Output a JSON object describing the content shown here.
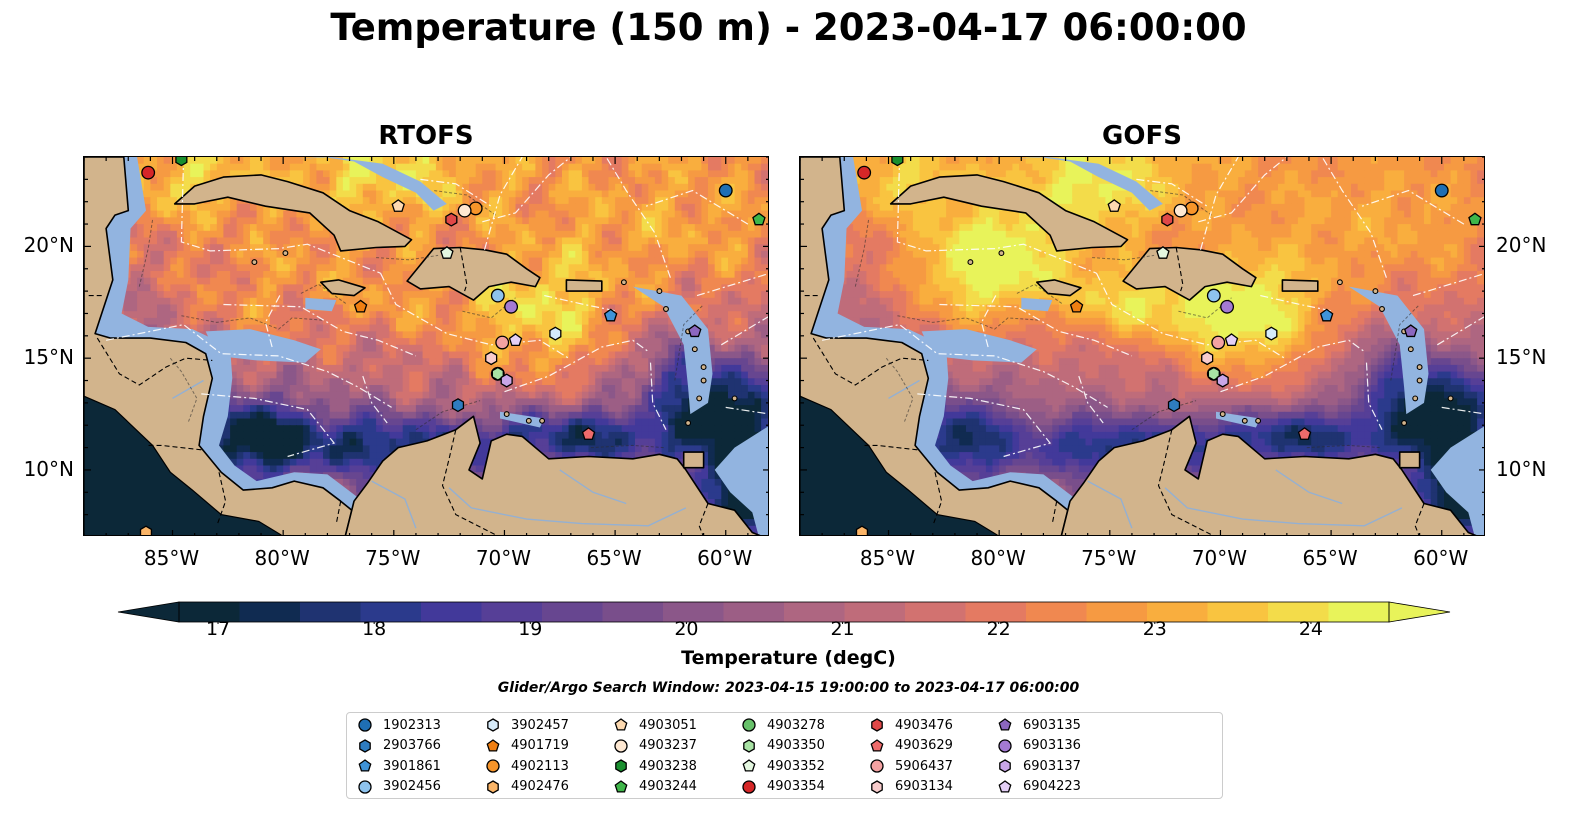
{
  "title": "Temperature (150 m) - 2023-04-17 06:00:00",
  "panels": [
    {
      "id": "rtofs",
      "title": "RTOFS",
      "variant": 0
    },
    {
      "id": "gofs",
      "title": "GOFS",
      "variant": 1
    }
  ],
  "map": {
    "lon_range": [
      -89,
      -58
    ],
    "lat_range": [
      7,
      24
    ],
    "lon_ticks": [
      {
        "value": -85,
        "label": "85°W"
      },
      {
        "value": -80,
        "label": "80°W"
      },
      {
        "value": -75,
        "label": "75°W"
      },
      {
        "value": -70,
        "label": "70°W"
      },
      {
        "value": -65,
        "label": "65°W"
      },
      {
        "value": -60,
        "label": "60°W"
      }
    ],
    "lat_ticks": [
      {
        "value": 20,
        "label": "20°N"
      },
      {
        "value": 15,
        "label": "15°N"
      },
      {
        "value": 10,
        "label": "10°N"
      }
    ],
    "colors": {
      "land": "#d2b48c",
      "shelf": "#92b4e0",
      "deep": "#0c2838"
    }
  },
  "colorbar": {
    "label": "Temperature (degC)",
    "min": 16.75,
    "max": 24.5,
    "step": 0.5,
    "ticks": [
      {
        "value": 17,
        "label": "17"
      },
      {
        "value": 18,
        "label": "18"
      },
      {
        "value": 19,
        "label": "19"
      },
      {
        "value": 20,
        "label": "20"
      },
      {
        "value": 21,
        "label": "21"
      },
      {
        "value": 22,
        "label": "22"
      },
      {
        "value": 23,
        "label": "23"
      },
      {
        "value": 24,
        "label": "24"
      }
    ],
    "colors": [
      "#0c2838",
      "#102b51",
      "#1f3371",
      "#2b3a8c",
      "#42399a",
      "#563f97",
      "#674690",
      "#794e8b",
      "#8b5789",
      "#9c5e85",
      "#ae6681",
      "#bf6c7a",
      "#d27270",
      "#e47a62",
      "#f08850",
      "#f69a42",
      "#f9ae3e",
      "#f9c440",
      "#f3dc4a",
      "#e8f35a"
    ]
  },
  "search_window": "Glider/Argo Search Window: 2023-04-15 19:00:00 to 2023-04-17 06:00:00",
  "floats": [
    {
      "id": "1902313",
      "color": "#1f6fb4",
      "marker": "circle",
      "lon": -60.0,
      "lat": 22.5
    },
    {
      "id": "2903766",
      "color": "#2e7cc0",
      "marker": "hexagon",
      "lon": -72.1,
      "lat": 12.9
    },
    {
      "id": "3901861",
      "color": "#3f93d8",
      "marker": "pentagon",
      "lon": -65.2,
      "lat": 16.9
    },
    {
      "id": "3902456",
      "color": "#8ec3ee",
      "marker": "circle",
      "lon": -70.3,
      "lat": 17.8
    },
    {
      "id": "3902457",
      "color": "#d6ebfa",
      "marker": "hexagon",
      "lon": -67.7,
      "lat": 16.1
    },
    {
      "id": "4901719",
      "color": "#f07f12",
      "marker": "pentagon",
      "lon": -76.5,
      "lat": 17.3
    },
    {
      "id": "4902113",
      "color": "#f7952a",
      "marker": "circle",
      "lon": -71.3,
      "lat": 21.7
    },
    {
      "id": "4902476",
      "color": "#fbb568",
      "marker": "hexagon",
      "lon": -86.2,
      "lat": 7.2
    },
    {
      "id": "4903051",
      "color": "#fdd9b0",
      "marker": "pentagon",
      "lon": -74.8,
      "lat": 21.8
    },
    {
      "id": "4903237",
      "color": "#fee8d2",
      "marker": "circle",
      "lon": -71.8,
      "lat": 21.6
    },
    {
      "id": "4903238",
      "color": "#1a8f2f",
      "marker": "hexagon",
      "lon": -84.6,
      "lat": 23.9
    },
    {
      "id": "4903244",
      "color": "#3fb64a",
      "marker": "pentagon",
      "lon": -58.5,
      "lat": 21.2
    },
    {
      "id": "4903278",
      "color": "#67c16a",
      "marker": "circle",
      "lon": -70.3,
      "lat": 14.3
    },
    {
      "id": "4903350",
      "color": "#a8e2a4",
      "marker": "hexagon",
      "lon": -70.3,
      "lat": 14.3
    },
    {
      "id": "4903352",
      "color": "#e4f7e0",
      "marker": "pentagon",
      "lon": -72.6,
      "lat": 19.7
    },
    {
      "id": "4903354",
      "color": "#d62728",
      "marker": "circle",
      "lon": -86.1,
      "lat": 23.3
    },
    {
      "id": "4903476",
      "color": "#e04848",
      "marker": "hexagon",
      "lon": -72.4,
      "lat": 21.2
    },
    {
      "id": "4903629",
      "color": "#ee6b6b",
      "marker": "pentagon",
      "lon": -66.2,
      "lat": 11.6
    },
    {
      "id": "5906437",
      "color": "#f4a2a2",
      "marker": "circle",
      "lon": -70.1,
      "lat": 15.7
    },
    {
      "id": "6903134",
      "color": "#f8cccc",
      "marker": "hexagon",
      "lon": -70.6,
      "lat": 15.0
    },
    {
      "id": "6903135",
      "color": "#8c67bf",
      "marker": "pentagon",
      "lon": -61.4,
      "lat": 16.2
    },
    {
      "id": "6903136",
      "color": "#a47ad3",
      "marker": "circle",
      "lon": -69.7,
      "lat": 17.3
    },
    {
      "id": "6903137",
      "color": "#c9a6e8",
      "marker": "hexagon",
      "lon": -69.9,
      "lat": 14.0
    },
    {
      "id": "6904223",
      "color": "#e4cff6",
      "marker": "pentagon",
      "lon": -69.5,
      "lat": 15.8
    }
  ]
}
